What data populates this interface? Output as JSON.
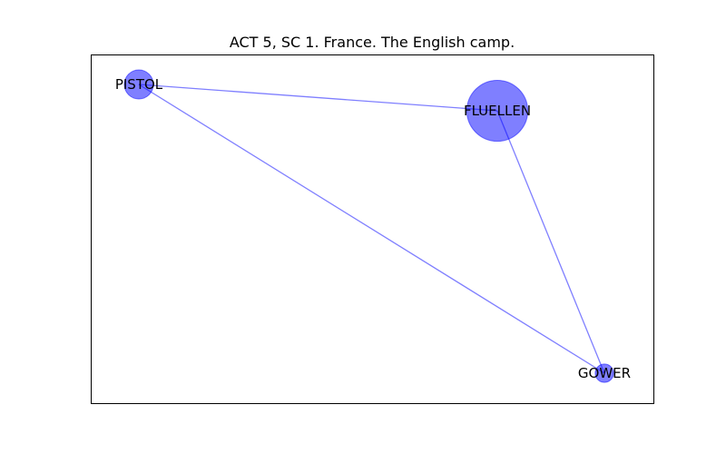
{
  "title": "ACT 5, SC 1. France. The English camp.",
  "colors": {
    "node_fill": "#0000ff",
    "node_stroke": "#0000ff",
    "edge": "#0000ff",
    "frame": "#000000",
    "background": "#ffffff"
  },
  "graph": {
    "nodes": [
      {
        "id": "PISTOL",
        "label": "PISTOL",
        "weight": 1.0
      },
      {
        "id": "FLUELLEN",
        "label": "FLUELLEN",
        "weight": 4.4
      },
      {
        "id": "GOWER",
        "label": "GOWER",
        "weight": 0.4
      }
    ],
    "edges": [
      {
        "source": "PISTOL",
        "target": "FLUELLEN"
      },
      {
        "source": "PISTOL",
        "target": "GOWER"
      },
      {
        "source": "FLUELLEN",
        "target": "GOWER"
      }
    ]
  }
}
